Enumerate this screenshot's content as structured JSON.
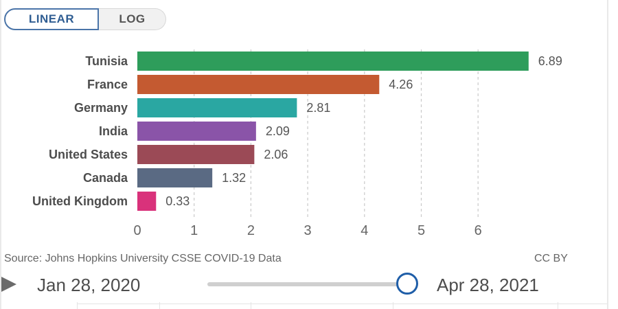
{
  "toggle": {
    "linear_label": "LINEAR",
    "log_label": "LOG",
    "selected": "LINEAR"
  },
  "chart_data": {
    "type": "bar",
    "orientation": "horizontal",
    "categories": [
      "Tunisia",
      "France",
      "Germany",
      "India",
      "United States",
      "Canada",
      "United Kingdom"
    ],
    "values": [
      6.89,
      4.26,
      2.81,
      2.09,
      2.06,
      1.32,
      0.33
    ],
    "value_labels": [
      "6.89",
      "4.26",
      "2.81",
      "2.09",
      "2.06",
      "1.32",
      "0.33"
    ],
    "colors": [
      "#2e9d5b",
      "#c45a31",
      "#2aa7a2",
      "#8a54a8",
      "#9b4a56",
      "#5a6a83",
      "#d9327b"
    ],
    "x_ticks": [
      "0",
      "1",
      "2",
      "3",
      "4",
      "5",
      "6"
    ],
    "xlim": [
      0,
      6.89
    ],
    "grid": true,
    "title": "",
    "xlabel": "",
    "ylabel": ""
  },
  "footer": {
    "source": "Source: Johns Hopkins University CSSE COVID-19 Data",
    "license": "CC BY"
  },
  "timeline": {
    "start_date": "Jan 28, 2020",
    "end_date": "Apr 28, 2021",
    "position": 1.0
  }
}
